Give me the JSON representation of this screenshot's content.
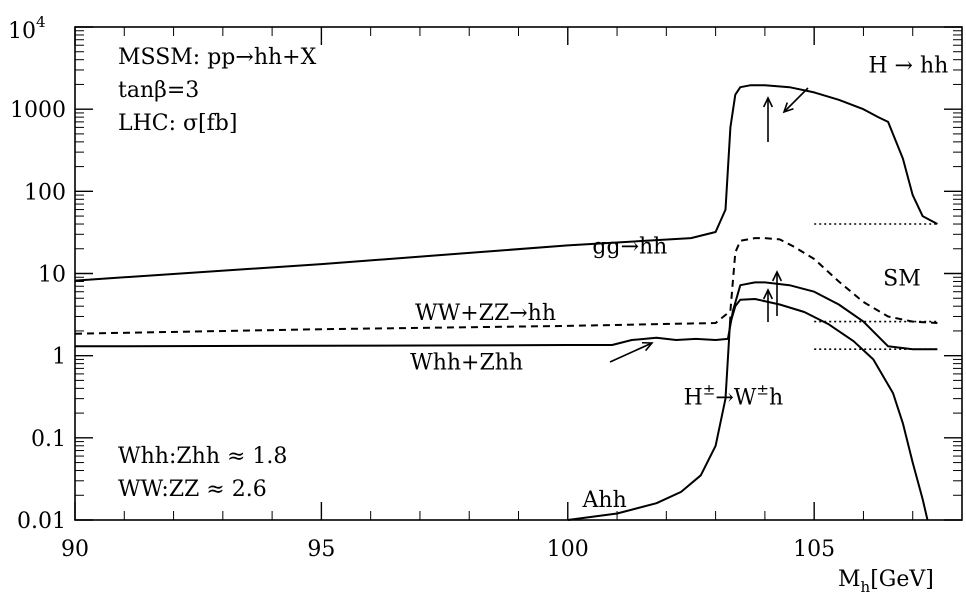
{
  "chart_data": {
    "type": "line",
    "title": "",
    "xlabel_main": "M",
    "xlabel_sub": "h",
    "xlabel_unit": "[GeV]",
    "ylabel": "",
    "xlim": [
      90,
      108
    ],
    "ylim": [
      0.01,
      10000
    ],
    "y_scale": "log",
    "x_ticks": [
      {
        "value": 90,
        "label": "90"
      },
      {
        "value": 95,
        "label": "95"
      },
      {
        "value": 100,
        "label": "100"
      },
      {
        "value": 105,
        "label": "105"
      }
    ],
    "y_ticks": [
      {
        "value": 0.01,
        "label": "0.01"
      },
      {
        "value": 0.1,
        "label": "0.1"
      },
      {
        "value": 1,
        "label": "1"
      },
      {
        "value": 10,
        "label": "10"
      },
      {
        "value": 100,
        "label": "100"
      },
      {
        "value": 1000,
        "label": "1000"
      }
    ],
    "y_top_tick": {
      "value": 10000,
      "base": "10",
      "exp": "4"
    },
    "info_lines": [
      "MSSM: pp→hh+X",
      "tanβ=3",
      "LHC: σ[fb]"
    ],
    "ratio_lines": [
      "Whh:Zhh ≈ 1.8",
      "WW:ZZ ≈ 2.6"
    ],
    "series": [
      {
        "label": "gg→hh",
        "style": "solid",
        "x": [
          90,
          95,
          100,
          102.5,
          103,
          103.2,
          103.3,
          103.4,
          103.5,
          103.7,
          104,
          104.5,
          105,
          105.5,
          106,
          106.3,
          106.5,
          106.8,
          107,
          107.2,
          107.5
        ],
        "y": [
          8.2,
          13,
          22,
          27,
          32,
          60,
          600,
          1500,
          1850,
          1950,
          1950,
          1850,
          1600,
          1300,
          1000,
          800,
          700,
          250,
          90,
          50,
          40
        ]
      },
      {
        "label": "WW+ZZ→hh",
        "style": "dashed",
        "x": [
          90,
          95,
          100,
          103,
          103.3,
          103.4,
          103.5,
          103.8,
          104,
          104.3,
          104.6,
          105,
          105.5,
          106,
          106.5,
          107,
          107.5
        ],
        "y": [
          1.85,
          2.1,
          2.3,
          2.5,
          3.5,
          18,
          25,
          27,
          27,
          26,
          21,
          15,
          8,
          4.5,
          3,
          2.6,
          2.5
        ]
      },
      {
        "label": "Whh+Zhh",
        "style": "solid",
        "x": [
          90,
          95,
          100,
          100.9,
          101.3,
          101.8,
          102.2,
          102.6,
          103,
          103.25,
          103.35,
          103.5,
          103.8,
          104,
          104.5,
          105,
          105.5,
          106,
          106.5,
          107,
          107.5
        ],
        "y": [
          1.3,
          1.32,
          1.35,
          1.35,
          1.55,
          1.65,
          1.55,
          1.6,
          1.55,
          1.6,
          3.5,
          7.2,
          7.8,
          7.8,
          7.2,
          6,
          4.2,
          2.6,
          1.3,
          1.2,
          1.2
        ]
      },
      {
        "label": "H±→W±h",
        "style": "solid",
        "x": [
          103.3,
          103.4,
          103.5,
          103.8,
          104.3,
          104.8,
          105.3,
          105.8,
          106.2,
          106.6,
          106.8,
          107,
          107.2,
          107.3
        ],
        "y": [
          2.5,
          4,
          4.8,
          4.9,
          4.2,
          3.4,
          2.4,
          1.5,
          0.9,
          0.35,
          0.15,
          0.05,
          0.018,
          0.01
        ]
      },
      {
        "label": "Ahh",
        "style": "solid",
        "x": [
          100,
          101,
          101.8,
          102.3,
          102.7,
          103,
          103.2,
          103.3
        ],
        "y": [
          0.01,
          0.012,
          0.016,
          0.022,
          0.035,
          0.08,
          0.3,
          3
        ]
      },
      {
        "label": "SM",
        "style": "dotted",
        "x": [
          105,
          107.5
        ],
        "y": [
          40,
          40
        ]
      },
      {
        "label": "",
        "style": "dotted",
        "x": [
          105,
          107.5
        ],
        "y": [
          2.6,
          2.6
        ]
      },
      {
        "label": "",
        "style": "dotted",
        "x": [
          105,
          107.5
        ],
        "y": [
          1.2,
          1.2
        ]
      }
    ],
    "annotations": [
      {
        "text": "H → hh",
        "base": "",
        "sup1": "",
        "mid": "",
        "sup2": "",
        "tail": "",
        "x": 106.1,
        "y": 3500
      },
      {
        "text": "gg→hh",
        "base": "",
        "sup1": "",
        "mid": "",
        "sup2": "",
        "tail": "",
        "x": 100.5,
        "y": 22
      },
      {
        "text": "SM",
        "base": "",
        "sup1": "",
        "mid": "",
        "sup2": "",
        "tail": "",
        "x": 106.4,
        "y": 9
      },
      {
        "text": "WW+ZZ→hh",
        "base": "",
        "sup1": "",
        "mid": "",
        "sup2": "",
        "tail": "",
        "x": 96.9,
        "y": 3.4
      },
      {
        "text": "Whh+Zhh",
        "base": "",
        "sup1": "",
        "mid": "",
        "sup2": "",
        "tail": "",
        "x": 96.8,
        "y": 0.85
      },
      {
        "text": "",
        "base": "H",
        "sup1": "±",
        "mid": "→W",
        "sup2": "±",
        "tail": "h",
        "x": 102.35,
        "y": 0.32
      },
      {
        "text": "Ahh",
        "base": "",
        "sup1": "",
        "mid": "",
        "sup2": "",
        "tail": "",
        "x": 100.3,
        "y": 0.018
      }
    ]
  }
}
